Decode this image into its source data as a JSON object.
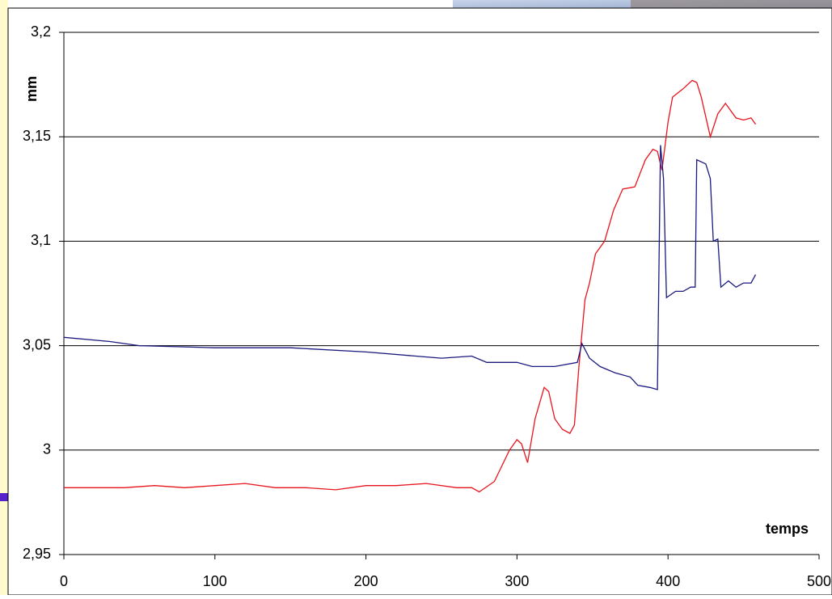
{
  "chart_data": {
    "type": "line",
    "x_label": "temps",
    "y_label": "mm",
    "xlim": [
      0,
      500
    ],
    "xticks": [
      0,
      100,
      200,
      300,
      400,
      500
    ],
    "ylim": [
      2.95,
      3.2
    ],
    "yticks": [
      {
        "value": 2.95,
        "label": "2,95"
      },
      3,
      {
        "value": 3.05,
        "label": "3,05"
      },
      {
        "value": 3.1,
        "label": "3,1"
      },
      {
        "value": 3.15,
        "label": "3,15"
      },
      {
        "value": 3.2,
        "label": "3,2"
      }
    ],
    "grid": true,
    "series": [
      {
        "color": "#e8141c",
        "x": [
          0,
          20,
          40,
          60,
          80,
          100,
          120,
          140,
          160,
          180,
          200,
          220,
          240,
          260,
          270,
          275,
          285,
          295,
          300,
          303,
          307,
          312,
          318,
          321,
          325,
          330,
          335,
          338,
          341,
          345,
          348,
          352,
          358,
          364,
          370,
          378,
          385,
          390,
          393,
          396,
          400,
          403,
          410,
          416,
          419,
          422,
          428,
          433,
          438,
          445,
          450,
          455,
          458
        ],
        "values": [
          2.982,
          2.982,
          2.982,
          2.983,
          2.982,
          2.983,
          2.984,
          2.982,
          2.982,
          2.981,
          2.983,
          2.983,
          2.984,
          2.982,
          2.982,
          2.98,
          2.985,
          3.0,
          3.005,
          3.003,
          2.994,
          3.015,
          3.03,
          3.028,
          3.015,
          3.01,
          3.008,
          3.012,
          3.04,
          3.072,
          3.08,
          3.094,
          3.1,
          3.115,
          3.125,
          3.126,
          3.139,
          3.144,
          3.143,
          3.134,
          3.157,
          3.169,
          3.173,
          3.177,
          3.176,
          3.169,
          3.15,
          3.161,
          3.166,
          3.159,
          3.158,
          3.159,
          3.156
        ]
      },
      {
        "color": "#1a1a80",
        "x": [
          0,
          30,
          50,
          100,
          150,
          200,
          250,
          270,
          280,
          300,
          310,
          325,
          340,
          343,
          348,
          355,
          365,
          375,
          380,
          388,
          393,
          395,
          397,
          399,
          405,
          410,
          415,
          418,
          419,
          425,
          428,
          430,
          433,
          435,
          440,
          445,
          450,
          455,
          458
        ],
        "values": [
          3.054,
          3.052,
          3.05,
          3.049,
          3.049,
          3.047,
          3.044,
          3.045,
          3.042,
          3.042,
          3.04,
          3.04,
          3.042,
          3.051,
          3.044,
          3.04,
          3.037,
          3.035,
          3.031,
          3.03,
          3.029,
          3.146,
          3.13,
          3.073,
          3.076,
          3.076,
          3.078,
          3.078,
          3.139,
          3.137,
          3.13,
          3.1,
          3.101,
          3.078,
          3.081,
          3.078,
          3.08,
          3.08,
          3.084
        ]
      }
    ]
  }
}
